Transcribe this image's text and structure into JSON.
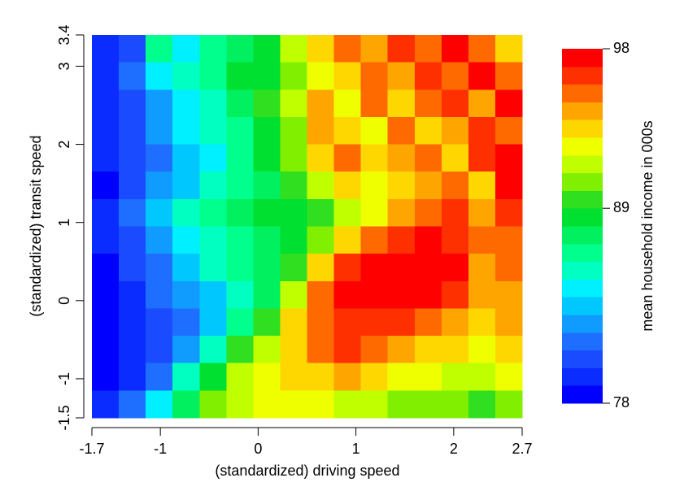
{
  "chart_data": {
    "type": "contour",
    "xlabel": "(standardized) driving speed",
    "ylabel": "(standardized) transit speed",
    "colorbar_label": "mean household income in 000s",
    "xlim": [
      -1.7,
      2.7
    ],
    "xticks": [
      -1.7,
      -1,
      0,
      1,
      2,
      2.7
    ],
    "ylim": [
      -1.5,
      3.4
    ],
    "yticks": [
      -1.5,
      -1,
      0,
      1,
      2,
      3,
      3.4
    ],
    "zlim": [
      78,
      98
    ],
    "zticks": [
      78,
      89,
      98
    ],
    "colors": [
      "#0000ff",
      "#0a2cff",
      "#1a4bff",
      "#1e6fff",
      "#109cff",
      "#00c8ff",
      "#00f0ff",
      "#00ffc0",
      "#00ff8c",
      "#00f060",
      "#00e030",
      "#30e020",
      "#80f000",
      "#c0ff00",
      "#f0ff00",
      "#ffd700",
      "#ffa500",
      "#ff6a00",
      "#ff3000",
      "#ff0000"
    ],
    "z": [
      [
        79,
        80,
        86,
        84,
        86,
        87,
        88,
        91,
        93,
        95,
        94,
        96,
        95,
        97,
        95,
        93
      ],
      [
        79,
        81,
        84,
        85,
        86,
        88,
        88,
        90,
        92,
        93,
        95,
        94,
        96,
        95,
        97,
        95
      ],
      [
        79,
        80,
        82,
        84,
        85,
        87,
        89,
        91,
        94,
        92,
        95,
        93,
        95,
        96,
        94,
        97
      ],
      [
        79,
        80,
        82,
        84,
        85,
        86,
        88,
        90,
        94,
        93,
        92,
        95,
        93,
        94,
        96,
        95
      ],
      [
        79,
        80,
        81,
        83,
        84,
        86,
        88,
        90,
        93,
        95,
        93,
        94,
        95,
        93,
        96,
        97
      ],
      [
        78,
        80,
        82,
        83,
        85,
        86,
        87,
        89,
        91,
        93,
        92,
        93,
        94,
        95,
        93,
        97
      ],
      [
        79,
        81,
        83,
        85,
        86,
        87,
        88,
        88,
        89,
        91,
        92,
        94,
        95,
        96,
        94,
        96
      ],
      [
        79,
        80,
        82,
        84,
        85,
        86,
        87,
        88,
        90,
        93,
        95,
        96,
        97,
        96,
        95,
        95
      ],
      [
        78,
        80,
        81,
        83,
        85,
        86,
        87,
        89,
        93,
        96,
        97,
        97,
        98,
        97,
        94,
        95
      ],
      [
        78,
        79,
        81,
        82,
        83,
        85,
        87,
        91,
        95,
        97,
        97,
        97,
        97,
        96,
        94,
        94
      ],
      [
        78,
        79,
        80,
        81,
        83,
        86,
        89,
        93,
        95,
        96,
        96,
        96,
        95,
        94,
        93,
        94
      ],
      [
        78,
        79,
        80,
        82,
        85,
        89,
        91,
        93,
        95,
        96,
        95,
        94,
        93,
        93,
        92,
        93
      ],
      [
        78,
        79,
        81,
        85,
        88,
        91,
        92,
        93,
        93,
        94,
        93,
        92,
        92,
        91,
        91,
        92
      ],
      [
        79,
        81,
        84,
        87,
        90,
        91,
        92,
        92,
        92,
        91,
        91,
        90,
        90,
        90,
        89,
        90
      ]
    ]
  }
}
